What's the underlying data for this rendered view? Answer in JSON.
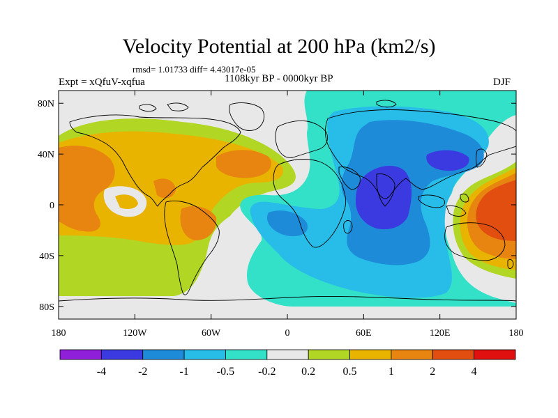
{
  "title": "Velocity Potential at 200 hPa (km2/s)",
  "stats": "rmsd= 1.01733 diff= 4.43017e-05",
  "left_label": "Expt = xQfuV-xqfua",
  "center_label": "1108kyr BP - 0000kyr BP",
  "right_label": "DJF",
  "lat_ticks": [
    {
      "label": "80N",
      "value": 80
    },
    {
      "label": "40N",
      "value": 40
    },
    {
      "label": "0",
      "value": 0
    },
    {
      "label": "40S",
      "value": -40
    },
    {
      "label": "80S",
      "value": -80
    }
  ],
  "lon_ticks": [
    {
      "label": "180",
      "value": -180
    },
    {
      "label": "120W",
      "value": -120
    },
    {
      "label": "60W",
      "value": -60
    },
    {
      "label": "0",
      "value": 0
    },
    {
      "label": "60E",
      "value": 60
    },
    {
      "label": "120E",
      "value": 120
    },
    {
      "label": "180",
      "value": 180
    }
  ],
  "colorbar": {
    "colors": [
      "#8f1fd9",
      "#3a3ae0",
      "#1e8bd8",
      "#27bde8",
      "#33e0c8",
      "#e8e8e8",
      "#b2d624",
      "#e8b400",
      "#e88410",
      "#e24e10",
      "#e01010"
    ],
    "labels": [
      "-4",
      "-2",
      "-1",
      "-0.5",
      "-0.2",
      "0.2",
      "0.5",
      "1",
      "2",
      "4"
    ]
  }
}
